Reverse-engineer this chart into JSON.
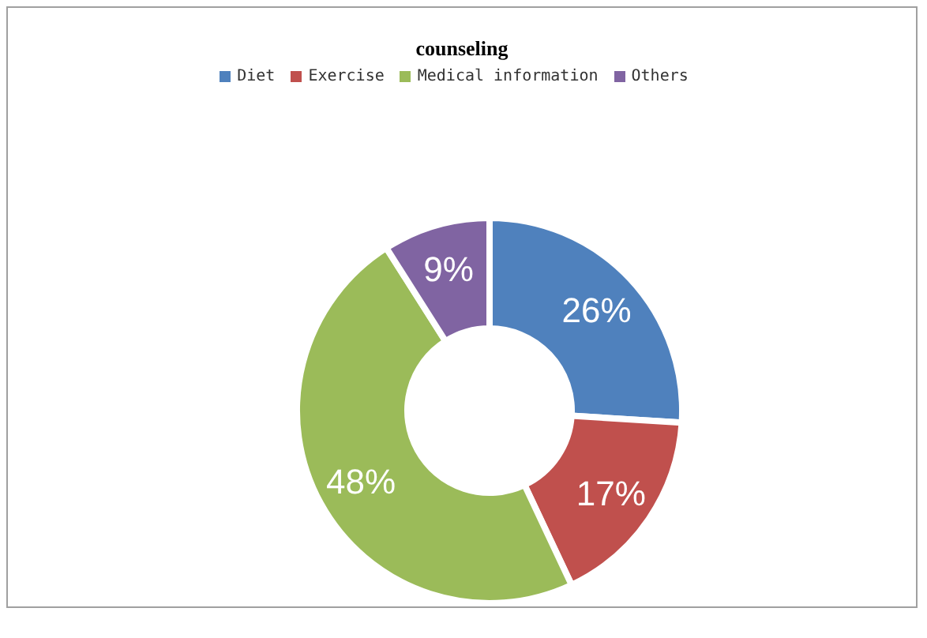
{
  "chart_data": {
    "type": "donut",
    "title": "counseling",
    "categories": [
      "Diet",
      "Exercise",
      "Medical information",
      "Others"
    ],
    "values": [
      26,
      17,
      48,
      9
    ],
    "colors": [
      "#4f81bd",
      "#c0504d",
      "#9bbb59",
      "#8064a2"
    ],
    "value_labels": [
      "26%",
      "17%",
      "48%",
      "9%"
    ],
    "legend": "top"
  }
}
